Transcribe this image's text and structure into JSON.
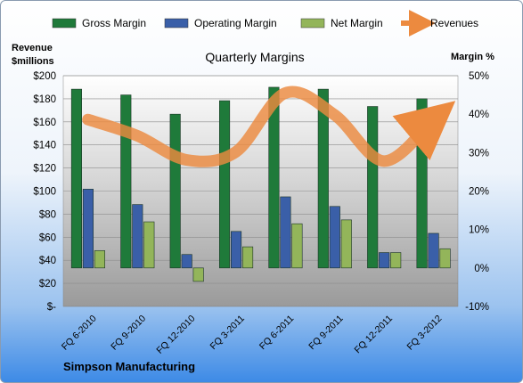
{
  "chart_data": {
    "type": "bar",
    "title": "Quarterly Margins",
    "footer": "Simpson Manufacturing",
    "categories": [
      "FQ 6-2010",
      "FQ 9-2010",
      "FQ 12-2010",
      "FQ 3-2011",
      "FQ 6-2011",
      "FQ 9-2011",
      "FQ 12-2011",
      "FQ 3-2012"
    ],
    "series": [
      {
        "name": "Gross Margin",
        "type": "bar",
        "axis": "right",
        "color": "#1f7a3a",
        "values": [
          46.5,
          45.0,
          40.0,
          43.5,
          47.0,
          46.5,
          42.0,
          44.0
        ]
      },
      {
        "name": "Operating Margin",
        "type": "bar",
        "axis": "right",
        "color": "#3a5fa8",
        "values": [
          20.5,
          16.5,
          3.5,
          9.5,
          18.5,
          16.0,
          4.0,
          9.0
        ]
      },
      {
        "name": "Net Margin",
        "type": "bar",
        "axis": "right",
        "color": "#93b55a",
        "values": [
          4.5,
          12.0,
          -3.5,
          5.5,
          11.5,
          12.5,
          4.0,
          5.0
        ]
      },
      {
        "name": "Revenues",
        "type": "line",
        "axis": "left",
        "color": "#ec8a3f",
        "values": [
          162,
          148,
          127,
          134,
          185,
          166,
          126,
          162
        ]
      }
    ],
    "yleft": {
      "label_line1": "Revenue",
      "label_line2": "$millions",
      "ylim": [
        0,
        200
      ],
      "step": 20,
      "ticks": [
        "$-",
        "$20",
        "$40",
        "$60",
        "$80",
        "$100",
        "$120",
        "$140",
        "$160",
        "$180",
        "$200"
      ]
    },
    "yright": {
      "label": "Margin %",
      "ylim": [
        -10,
        50
      ],
      "step": 10,
      "ticks": [
        "-10%",
        "0%",
        "10%",
        "20%",
        "30%",
        "40%",
        "50%"
      ]
    },
    "grid": true,
    "legend": "top"
  }
}
